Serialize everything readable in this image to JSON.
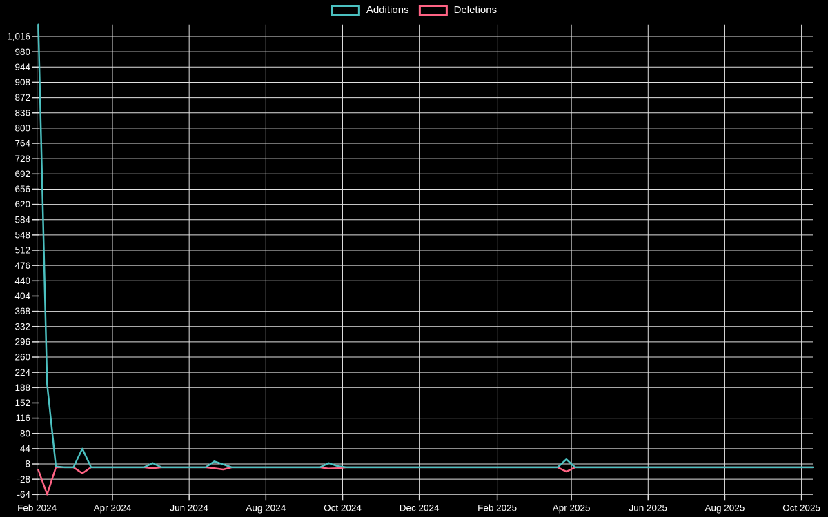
{
  "chart_data": {
    "type": "line",
    "title": "",
    "legend_position": "top",
    "grid": true,
    "background": "#000000",
    "colors": {
      "background": "#000000",
      "grid": "#e0e0e0",
      "text": "#ffffff",
      "additions": "#4bc0c0",
      "deletions": "#ff6384"
    },
    "ylim": [
      -64,
      1044
    ],
    "y_tick_step": 36,
    "y_ticks": [
      -64,
      -28,
      8,
      44,
      80,
      116,
      152,
      188,
      224,
      260,
      296,
      332,
      368,
      404,
      440,
      476,
      512,
      548,
      584,
      620,
      656,
      692,
      728,
      764,
      800,
      836,
      872,
      908,
      944,
      980,
      1016
    ],
    "x_ticks": [
      {
        "label": "Feb 2024",
        "day": 0
      },
      {
        "label": "Apr 2024",
        "day": 60
      },
      {
        "label": "Jun 2024",
        "day": 121
      },
      {
        "label": "Aug 2024",
        "day": 182
      },
      {
        "label": "Oct 2024",
        "day": 243
      },
      {
        "label": "Dec 2024",
        "day": 304
      },
      {
        "label": "Feb 2025",
        "day": 366
      },
      {
        "label": "Apr 2025",
        "day": 425
      },
      {
        "label": "Jun 2025",
        "day": 486
      },
      {
        "label": "Aug 2025",
        "day": 547
      },
      {
        "label": "Oct 2025",
        "day": 608
      }
    ],
    "x_axis_type": "time-weekly",
    "first_point_day": 1,
    "last_point_day": 617,
    "week_days": 7,
    "series": [
      {
        "name": "Additions",
        "color": "#4bc0c0",
        "values": [
          1044,
          196,
          2,
          0,
          0,
          44,
          0,
          0,
          0,
          0,
          0,
          0,
          0,
          10,
          0,
          0,
          0,
          0,
          0,
          0,
          14,
          7,
          0,
          0,
          0,
          0,
          0,
          0,
          0,
          0,
          0,
          0,
          0,
          10,
          3,
          0,
          0,
          0,
          0,
          0,
          0,
          0,
          0,
          0,
          0,
          0,
          0,
          0,
          0,
          0,
          0,
          0,
          0,
          0,
          0,
          0,
          0,
          0,
          0,
          0,
          19,
          0,
          0,
          0,
          0,
          0,
          0,
          0,
          0,
          0,
          0,
          0,
          0,
          0,
          0,
          0,
          0,
          0,
          0,
          0,
          0,
          0,
          0,
          0,
          0,
          0,
          0,
          0,
          0
        ]
      },
      {
        "name": "Deletions",
        "color": "#ff6384",
        "values": [
          -6,
          -64,
          0,
          0,
          0,
          -14,
          0,
          0,
          0,
          0,
          0,
          0,
          0,
          -2,
          0,
          0,
          0,
          0,
          0,
          0,
          -2,
          -5,
          0,
          0,
          0,
          0,
          0,
          0,
          0,
          0,
          0,
          0,
          0,
          -3,
          -2,
          0,
          0,
          0,
          0,
          0,
          0,
          0,
          0,
          0,
          0,
          0,
          0,
          0,
          0,
          0,
          0,
          0,
          0,
          0,
          0,
          0,
          0,
          0,
          0,
          0,
          -10,
          0,
          0,
          0,
          0,
          0,
          0,
          0,
          0,
          0,
          0,
          0,
          0,
          0,
          0,
          0,
          0,
          0,
          0,
          0,
          0,
          0,
          0,
          0,
          0,
          0,
          0,
          0,
          0
        ]
      }
    ]
  }
}
